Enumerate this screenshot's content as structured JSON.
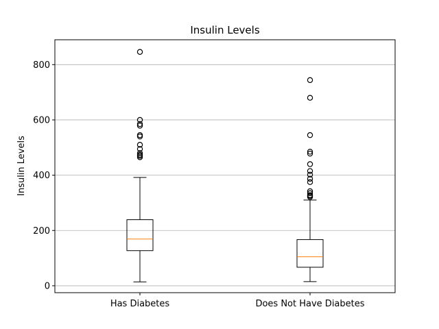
{
  "chart_data": {
    "type": "box",
    "title": "Insulin Levels",
    "xlabel": "",
    "ylabel": "Insulin Levels",
    "ylim": [
      -25,
      890
    ],
    "yticks": [
      0,
      200,
      400,
      600,
      800
    ],
    "grid": "y",
    "categories": [
      "Has Diabetes",
      "Does Not Have Diabetes"
    ],
    "boxes": [
      {
        "name": "Has Diabetes",
        "whisker_low": 14,
        "q1": 127,
        "median": 169,
        "q3": 239,
        "whisker_high": 392,
        "outliers": [
          465,
          470,
          474,
          480,
          495,
          510,
          540,
          545,
          579,
          585,
          600,
          846
        ]
      },
      {
        "name": "Does Not Have Diabetes",
        "whisker_low": 15,
        "q1": 67,
        "median": 105,
        "q3": 167,
        "whisker_high": 310,
        "outliers": [
          321,
          325,
          328,
          335,
          342,
          375,
          387,
          402,
          415,
          440,
          478,
          485,
          545,
          680,
          744
        ]
      }
    ]
  }
}
